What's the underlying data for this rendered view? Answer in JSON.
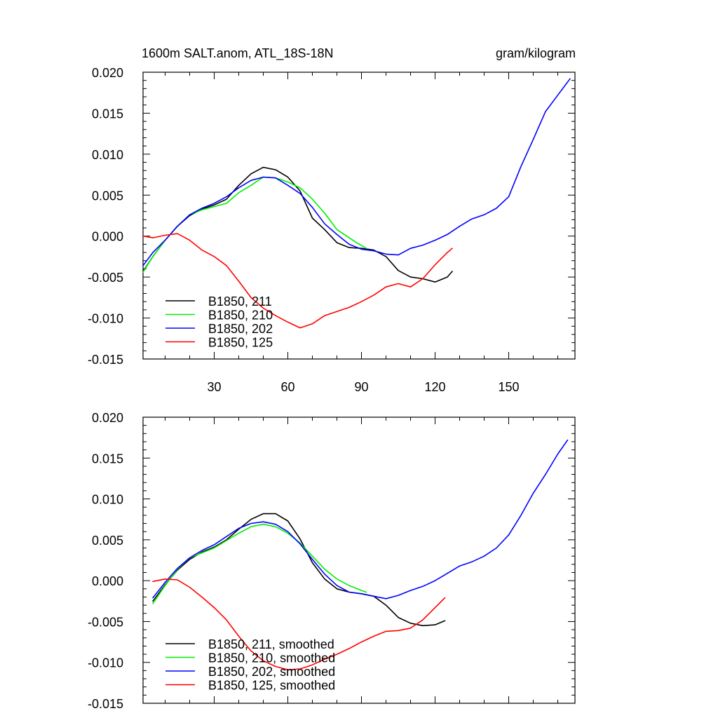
{
  "figure": {
    "title_left": "1600m SALT.anom, ATL_18S-18N",
    "title_right": "gram/kilogram"
  },
  "chart_data": [
    {
      "type": "line",
      "panel": "top",
      "xlim": [
        1,
        177
      ],
      "ylim": [
        -0.015,
        0.02
      ],
      "x_ticks": [
        30,
        60,
        90,
        120,
        150
      ],
      "x_tick_labels": [
        "30",
        "60",
        "90",
        "120",
        "150"
      ],
      "y_ticks": [
        -0.015,
        -0.01,
        -0.005,
        0.0,
        0.005,
        0.01,
        0.015,
        0.02
      ],
      "y_tick_labels": [
        "-0.015",
        "-0.010",
        "-0.005",
        "0.000",
        "0.005",
        "0.010",
        "0.015",
        "0.020"
      ],
      "legend_position": "bottom-left",
      "series": [
        {
          "name": "B1850, 211",
          "color": "#000000",
          "x": [
            1,
            5,
            10,
            15,
            20,
            25,
            30,
            35,
            40,
            45,
            50,
            55,
            60,
            65,
            70,
            75,
            80,
            85,
            90,
            95,
            100,
            105,
            110,
            115,
            120,
            125,
            127
          ],
          "y": [
            -0.0043,
            -0.0025,
            -0.0005,
            0.0012,
            0.0025,
            0.0033,
            0.0038,
            0.0045,
            0.0062,
            0.0076,
            0.0084,
            0.0081,
            0.0072,
            0.0055,
            0.0022,
            0.0008,
            -0.0008,
            -0.0014,
            -0.0015,
            -0.0017,
            -0.0025,
            -0.0042,
            -0.005,
            -0.0052,
            -0.0056,
            -0.005,
            -0.0043
          ]
        },
        {
          "name": "B1850, 210",
          "color": "#00ee00",
          "x": [
            1,
            5,
            10,
            15,
            20,
            25,
            30,
            35,
            40,
            45,
            50,
            55,
            60,
            65,
            70,
            75,
            80,
            85,
            88,
            92
          ],
          "y": [
            -0.0044,
            -0.0025,
            -0.0005,
            0.0012,
            0.0026,
            0.0032,
            0.0036,
            0.004,
            0.0053,
            0.0062,
            0.0072,
            0.0071,
            0.0066,
            0.0059,
            0.0045,
            0.0028,
            0.0008,
            -0.0002,
            -0.0008,
            -0.0015
          ]
        },
        {
          "name": "B1850, 202",
          "color": "#0000ff",
          "x": [
            1,
            5,
            10,
            15,
            20,
            25,
            30,
            35,
            40,
            45,
            50,
            55,
            60,
            65,
            70,
            75,
            80,
            85,
            90,
            95,
            100,
            105,
            110,
            115,
            120,
            125,
            130,
            135,
            140,
            145,
            150,
            155,
            160,
            165,
            170,
            175
          ],
          "y": [
            -0.0036,
            -0.002,
            -0.0005,
            0.0012,
            0.0026,
            0.0034,
            0.004,
            0.0048,
            0.0059,
            0.0068,
            0.0072,
            0.0071,
            0.0062,
            0.0052,
            0.0035,
            0.0015,
            0.0002,
            -0.001,
            -0.0016,
            -0.0018,
            -0.0022,
            -0.0023,
            -0.0015,
            -0.0011,
            -0.0005,
            0.0002,
            0.0012,
            0.0021,
            0.0026,
            0.0034,
            0.0048,
            0.0085,
            0.0118,
            0.0152,
            0.0172,
            0.0192
          ]
        },
        {
          "name": "B1850, 125",
          "color": "#ff0000",
          "x": [
            1,
            5,
            10,
            15,
            20,
            25,
            30,
            35,
            40,
            45,
            50,
            55,
            60,
            65,
            70,
            75,
            80,
            85,
            90,
            95,
            100,
            105,
            110,
            115,
            120,
            125,
            127
          ],
          "y": [
            0.0,
            -0.0002,
            0.0001,
            0.0003,
            -0.0005,
            -0.0017,
            -0.0025,
            -0.0036,
            -0.0055,
            -0.0075,
            -0.0088,
            -0.0097,
            -0.0105,
            -0.0112,
            -0.0107,
            -0.0097,
            -0.0092,
            -0.0087,
            -0.008,
            -0.0072,
            -0.0062,
            -0.0058,
            -0.0062,
            -0.0052,
            -0.0035,
            -0.002,
            -0.0015
          ]
        }
      ]
    },
    {
      "type": "line",
      "panel": "bottom",
      "xlim": [
        1,
        177
      ],
      "ylim": [
        -0.015,
        0.02
      ],
      "x_ticks": [
        30,
        60,
        90,
        120,
        150
      ],
      "y_ticks": [
        -0.015,
        -0.01,
        -0.005,
        0.0,
        0.005,
        0.01,
        0.015,
        0.02
      ],
      "y_tick_labels": [
        "-0.015",
        "-0.010",
        "-0.005",
        "0.000",
        "0.005",
        "0.010",
        "0.015",
        "0.020"
      ],
      "legend_position": "bottom-left",
      "series": [
        {
          "name": "B1850, 211, smoothed",
          "color": "#000000",
          "x": [
            5,
            10,
            15,
            20,
            25,
            30,
            35,
            40,
            45,
            50,
            55,
            60,
            65,
            70,
            75,
            80,
            85,
            90,
            95,
            100,
            105,
            110,
            115,
            120,
            124
          ],
          "y": [
            -0.0025,
            -0.0005,
            0.0013,
            0.0026,
            0.0035,
            0.0041,
            0.005,
            0.0063,
            0.0075,
            0.0082,
            0.0082,
            0.0073,
            0.0051,
            0.0022,
            0.0002,
            -0.001,
            -0.0014,
            -0.0016,
            -0.0019,
            -0.003,
            -0.0045,
            -0.0052,
            -0.0055,
            -0.0054,
            -0.0049
          ]
        },
        {
          "name": "B1850, 210, smoothed",
          "color": "#00ee00",
          "x": [
            5,
            10,
            15,
            20,
            25,
            30,
            35,
            40,
            45,
            50,
            55,
            60,
            65,
            70,
            75,
            80,
            85,
            90,
            92
          ],
          "y": [
            -0.0028,
            -0.0006,
            0.0014,
            0.0028,
            0.0034,
            0.004,
            0.0049,
            0.0058,
            0.0066,
            0.0069,
            0.0066,
            0.0058,
            0.0046,
            0.003,
            0.0014,
            0.0002,
            -0.0006,
            -0.0012,
            -0.0014
          ]
        },
        {
          "name": "B1850, 202, smoothed",
          "color": "#0000ff",
          "x": [
            5,
            10,
            15,
            20,
            25,
            30,
            35,
            40,
            45,
            50,
            55,
            60,
            65,
            70,
            75,
            80,
            85,
            90,
            95,
            100,
            105,
            110,
            115,
            120,
            125,
            130,
            135,
            140,
            145,
            150,
            155,
            160,
            165,
            170,
            174
          ],
          "y": [
            -0.0021,
            -0.0002,
            0.0015,
            0.0028,
            0.0037,
            0.0044,
            0.0054,
            0.0064,
            0.007,
            0.0072,
            0.0069,
            0.006,
            0.0045,
            0.0026,
            0.0008,
            -0.0006,
            -0.0014,
            -0.0016,
            -0.0019,
            -0.0022,
            -0.0018,
            -0.0012,
            -0.0007,
            0.0,
            0.0009,
            0.0018,
            0.0023,
            0.003,
            0.004,
            0.0056,
            0.008,
            0.0107,
            0.013,
            0.0155,
            0.0172
          ]
        },
        {
          "name": "B1850, 125, smoothed",
          "color": "#ff0000",
          "x": [
            5,
            10,
            15,
            20,
            25,
            30,
            35,
            40,
            45,
            50,
            55,
            60,
            65,
            70,
            75,
            80,
            85,
            90,
            95,
            100,
            105,
            110,
            115,
            120,
            124
          ],
          "y": [
            -0.0001,
            0.0002,
            0.0001,
            -0.0008,
            -0.002,
            -0.0033,
            -0.0048,
            -0.0068,
            -0.0086,
            -0.0098,
            -0.0105,
            -0.0109,
            -0.0108,
            -0.0103,
            -0.0096,
            -0.009,
            -0.0083,
            -0.0075,
            -0.0068,
            -0.0062,
            -0.0061,
            -0.0058,
            -0.0048,
            -0.0033,
            -0.0021
          ]
        }
      ]
    }
  ]
}
